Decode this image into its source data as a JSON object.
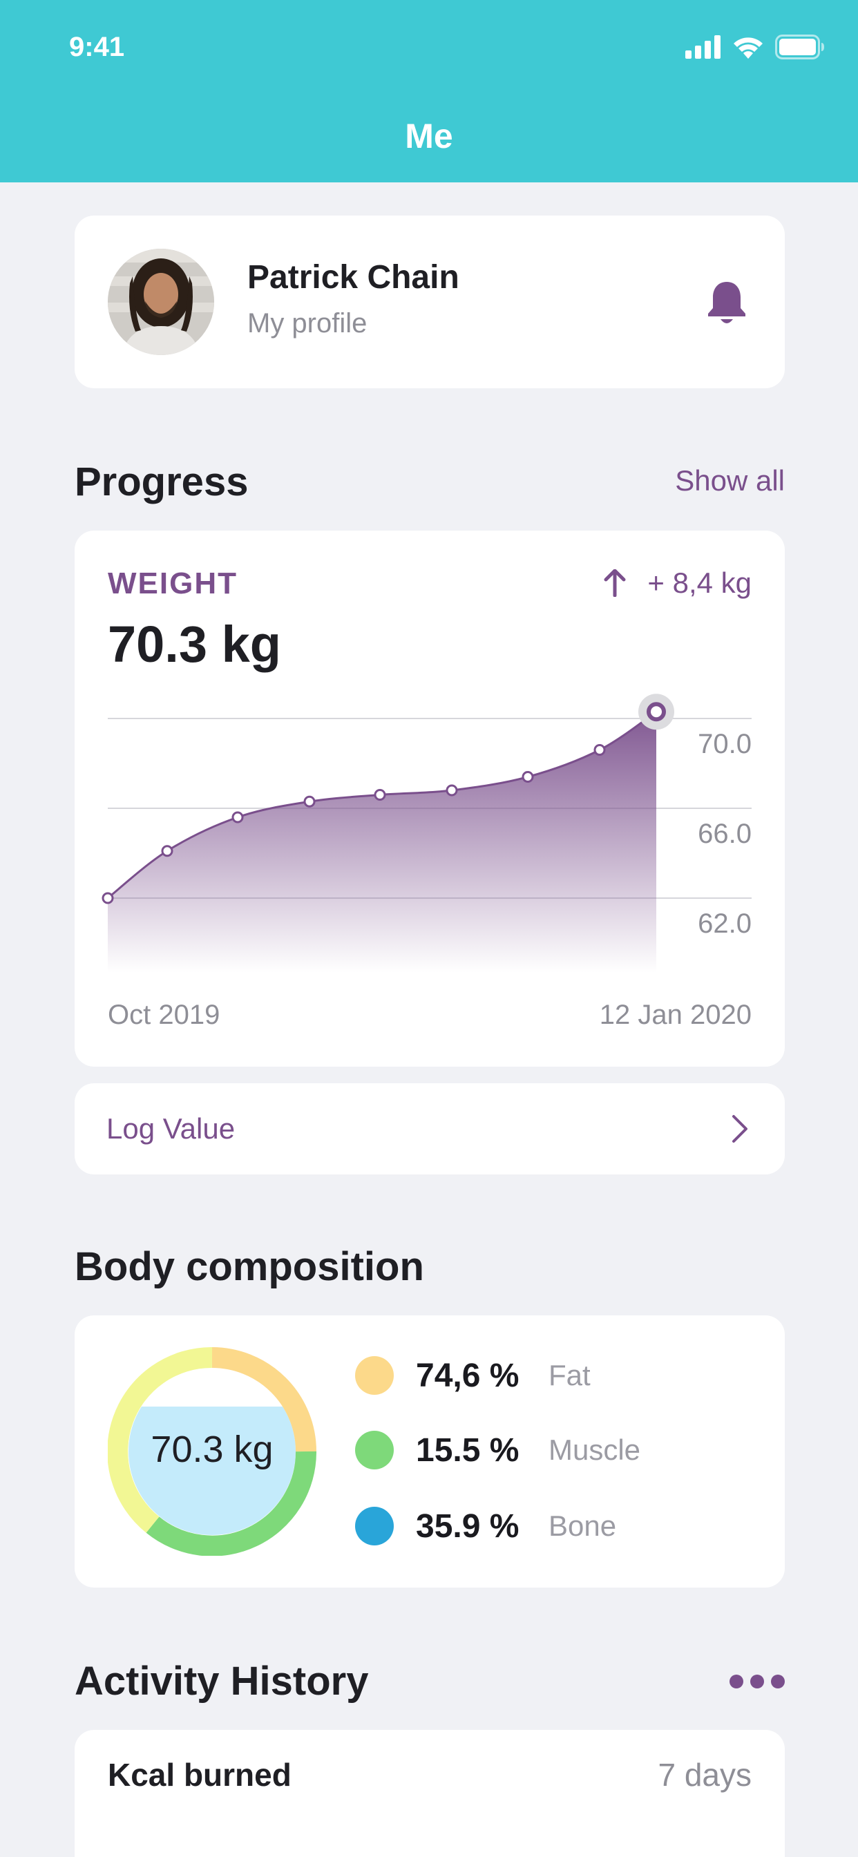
{
  "status_bar": {
    "time": "9:41"
  },
  "nav": {
    "title": "Me"
  },
  "profile": {
    "name": "Patrick Chain",
    "subtitle": "My profile"
  },
  "progress": {
    "title": "Progress",
    "show_all": "Show all",
    "weight_label": "WEIGHT",
    "weight_value": "70.3 kg",
    "weight_change": "+ 8,4 kg",
    "log_value": "Log Value"
  },
  "chart_data": {
    "type": "area",
    "x_start_label": "Oct 2019",
    "x_end_label": "12 Jan 2020",
    "y_ticks": [
      "70.0",
      "66.0",
      "62.0"
    ],
    "ylim": [
      60.0,
      70.0
    ],
    "values": [
      62.0,
      64.1,
      65.6,
      66.3,
      66.6,
      66.8,
      67.4,
      68.6,
      70.3
    ],
    "grid": true,
    "accent": "#7a4f8c"
  },
  "body_composition": {
    "title": "Body composition",
    "center_label": "70.3 kg",
    "items": [
      {
        "value": "74,6 %",
        "label": "Fat",
        "color": "#fcd98a"
      },
      {
        "value": "15.5 %",
        "label": "Muscle",
        "color": "#7ed97a"
      },
      {
        "value": "35.9 %",
        "label": "Bone",
        "color": "#29a5d9"
      }
    ]
  },
  "activity": {
    "title": "Activity History",
    "kcal_label": "Kcal burned",
    "period": "7 days"
  }
}
